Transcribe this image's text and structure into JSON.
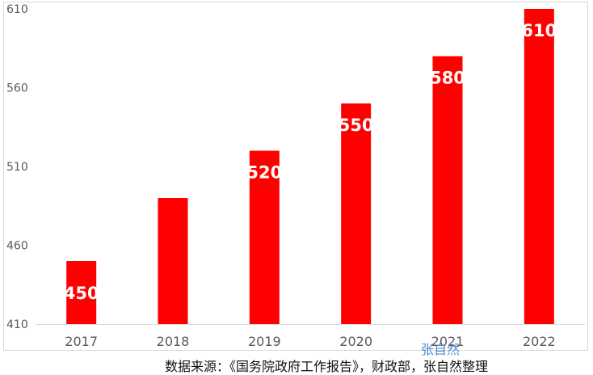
{
  "chart_data": {
    "type": "bar",
    "categories": [
      "2017",
      "2018",
      "2019",
      "2020",
      "2021",
      "2022"
    ],
    "values": [
      450,
      490,
      520,
      550,
      580,
      610
    ],
    "data_labels": [
      "450",
      "",
      "520",
      "550",
      "580",
      "610"
    ],
    "title": "",
    "xlabel": "",
    "ylabel": "",
    "ylim": [
      410,
      610
    ],
    "yticks": [
      "410",
      "460",
      "510",
      "560",
      "610"
    ],
    "grid": false,
    "legend": "none",
    "bar_color": "#ff0000"
  },
  "source_note": "数据来源：《国务院政府工作报告》，财政部，张自然整理",
  "watermark": "张自然"
}
